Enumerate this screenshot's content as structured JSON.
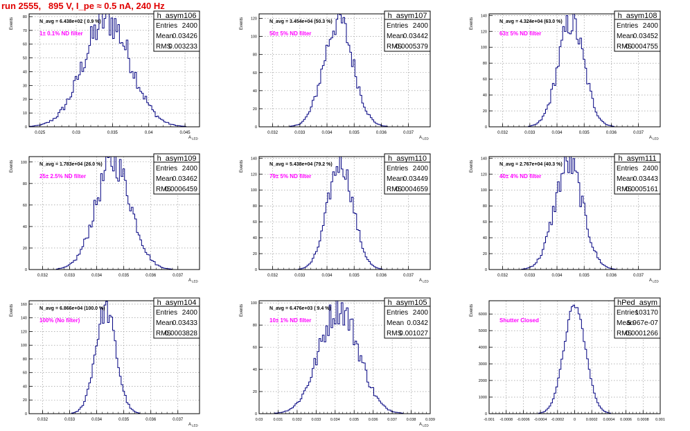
{
  "title": "run 2555,   895 V, I_pe ≈ 0.5 nA, 240 Hz",
  "chart_data": [
    {
      "type": "histogram",
      "name": "h_asym106",
      "legend_line1": "N_avg = 6.438e+02 ( 0.9 %)",
      "annotation": "1± 0.1% ND filter",
      "stats": {
        "Entries": "2400",
        "Mean": "0.03426",
        "RMS": "0.003233"
      },
      "xlim": [
        0.0235,
        0.047
      ],
      "xticks": [
        0.025,
        0.03,
        0.035,
        0.04,
        0.045
      ],
      "xtick_labels": [
        "0.025",
        "0.03",
        "0.035",
        "0.04",
        "0.045"
      ],
      "ylim": [
        0,
        82
      ],
      "yticks": [
        0,
        10,
        20,
        30,
        40,
        50,
        60,
        70,
        80
      ],
      "ylabel": "Events",
      "xlabel": "A_LED",
      "peak": 78,
      "mu": 0.03426,
      "sigma": 0.003233,
      "rough": 0.18
    },
    {
      "type": "histogram",
      "name": "h_asym107",
      "legend_line1": "N_avg = 3.454e+04 (50.3 %)",
      "annotation": "50± 5% ND filter",
      "stats": {
        "Entries": "2400",
        "Mean": "0.03442",
        "RMS": "0.0005379"
      },
      "xlim": [
        0.0315,
        0.0378
      ],
      "xticks": [
        0.032,
        0.033,
        0.034,
        0.035,
        0.036,
        0.037
      ],
      "xtick_labels": [
        "0.032",
        "0.033",
        "0.034",
        "0.035",
        "0.036",
        "0.037"
      ],
      "ylim": [
        0,
        125
      ],
      "yticks": [
        0,
        20,
        40,
        60,
        80,
        100,
        120
      ],
      "ylabel": "Events",
      "xlabel": "A_LED",
      "peak": 118,
      "mu": 0.03442,
      "sigma": 0.000538,
      "rough": 0.15
    },
    {
      "type": "histogram",
      "name": "h_asym108",
      "legend_line1": "N_avg = 4.324e+04 (63.0 %)",
      "annotation": "63± 5% ND filter",
      "stats": {
        "Entries": "2400",
        "Mean": "0.03452",
        "RMS": "0.0004755"
      },
      "xlim": [
        0.0315,
        0.0378
      ],
      "xticks": [
        0.032,
        0.033,
        0.034,
        0.035,
        0.036,
        0.037
      ],
      "xtick_labels": [
        "0.032",
        "0.033",
        "0.034",
        "0.035",
        "0.036",
        "0.037"
      ],
      "ylim": [
        0,
        142
      ],
      "yticks": [
        0,
        20,
        40,
        60,
        80,
        100,
        120,
        140
      ],
      "ylabel": "Events",
      "xlabel": "A_LED",
      "peak": 132,
      "mu": 0.03452,
      "sigma": 0.000476,
      "rough": 0.15
    },
    {
      "type": "histogram",
      "name": "h_asym109",
      "legend_line1": "N_avg = 1.783e+04 (26.0 %)",
      "annotation": "25± 2.5% ND filter",
      "stats": {
        "Entries": "2400",
        "Mean": "0.03462",
        "RMS": "0.0006459"
      },
      "xlim": [
        0.0315,
        0.0378
      ],
      "xticks": [
        0.032,
        0.033,
        0.034,
        0.035,
        0.036,
        0.037
      ],
      "xtick_labels": [
        "0.032",
        "0.033",
        "0.034",
        "0.035",
        "0.036",
        "0.037"
      ],
      "ylim": [
        0,
        105
      ],
      "yticks": [
        0,
        20,
        40,
        60,
        80,
        100
      ],
      "ylabel": "Events",
      "xlabel": "A_LED",
      "peak": 100,
      "mu": 0.03462,
      "sigma": 0.000646,
      "rough": 0.15
    },
    {
      "type": "histogram",
      "name": "h_asym110",
      "legend_line1": "N_avg = 5.438e+04 (79.2 %)",
      "annotation": "79± 5% ND filter",
      "stats": {
        "Entries": "2400",
        "Mean": "0.03449",
        "RMS": "0.0004659"
      },
      "xlim": [
        0.0315,
        0.0378
      ],
      "xticks": [
        0.032,
        0.033,
        0.034,
        0.035,
        0.036,
        0.037
      ],
      "xtick_labels": [
        "0.032",
        "0.033",
        "0.034",
        "0.035",
        "0.036",
        "0.037"
      ],
      "ylim": [
        0,
        142
      ],
      "yticks": [
        0,
        20,
        40,
        60,
        80,
        100,
        120,
        140
      ],
      "ylabel": "Events",
      "xlabel": "A_LED",
      "peak": 135,
      "mu": 0.03449,
      "sigma": 0.000466,
      "rough": 0.12
    },
    {
      "type": "histogram",
      "name": "h_asym111",
      "legend_line1": "N_avg = 2.767e+04 (40.3 %)",
      "annotation": "40± 4% ND filter",
      "stats": {
        "Entries": "2400",
        "Mean": "0.03443",
        "RMS": "0.0005161"
      },
      "xlim": [
        0.0315,
        0.0378
      ],
      "xticks": [
        0.032,
        0.033,
        0.034,
        0.035,
        0.036,
        0.037
      ],
      "xtick_labels": [
        "0.032",
        "0.033",
        "0.034",
        "0.035",
        "0.036",
        "0.037"
      ],
      "ylim": [
        0,
        142
      ],
      "yticks": [
        0,
        20,
        40,
        60,
        80,
        100,
        120,
        140
      ],
      "ylabel": "Events",
      "xlabel": "A_LED",
      "peak": 133,
      "mu": 0.03443,
      "sigma": 0.000516,
      "rough": 0.15
    },
    {
      "type": "histogram",
      "name": "h_asym104",
      "legend_line1": "N_avg = 6.866e+04 (100.0 %)",
      "annotation": "100% (No filter)",
      "stats": {
        "Entries": "2400",
        "Mean": "0.03433",
        "RMS": "0.0003828"
      },
      "xlim": [
        0.0315,
        0.0378
      ],
      "xticks": [
        0.032,
        0.033,
        0.034,
        0.035,
        0.036,
        0.037
      ],
      "xtick_labels": [
        "0.032",
        "0.033",
        "0.034",
        "0.035",
        "0.036",
        "0.037"
      ],
      "ylim": [
        0,
        165
      ],
      "yticks": [
        0,
        20,
        40,
        60,
        80,
        100,
        120,
        140,
        160
      ],
      "ylabel": "Events",
      "xlabel": "A_LED",
      "peak": 152,
      "mu": 0.03433,
      "sigma": 0.000383,
      "rough": 0.12
    },
    {
      "type": "histogram",
      "name": "h_asym105",
      "legend_line1": "N_avg = 6.476e+03 ( 9.4 %)",
      "annotation": "10± 1% ND filter",
      "stats": {
        "Entries": "2400",
        "Mean": "0.0342",
        "RMS": "0.001027"
      },
      "xlim": [
        0.03,
        0.039
      ],
      "xticks": [
        0.03,
        0.031,
        0.032,
        0.033,
        0.034,
        0.035,
        0.036,
        0.037,
        0.038,
        0.039
      ],
      "xtick_labels": [
        "0.03",
        "0.031",
        "0.032",
        "0.033",
        "0.034",
        "0.035",
        "0.036",
        "0.037",
        "0.038",
        "0.039"
      ],
      "ylim": [
        0,
        102
      ],
      "yticks": [
        0,
        20,
        40,
        60,
        80,
        100
      ],
      "ylabel": "Events",
      "xlabel": "A_LED",
      "peak": 96,
      "mu": 0.0342,
      "sigma": 0.001027,
      "rough": 0.16
    },
    {
      "type": "histogram",
      "name": "hPed_asym",
      "legend_line1": "",
      "annotation": "Shutter Closed",
      "stats": {
        "Entries": "103170",
        "Mean": "5.967e-07",
        "RMS": "0.0001266"
      },
      "xlim": [
        -0.001,
        0.001
      ],
      "xticks": [
        -0.001,
        -0.0008,
        -0.0006,
        -0.0004,
        -0.0002,
        0,
        0.0002,
        0.0004,
        0.0006,
        0.0008,
        0.001
      ],
      "xtick_labels": [
        "-0.001",
        "-0.0008",
        "-0.0006",
        "-0.0004",
        "-0.0002",
        "0",
        "0.0002",
        "0.0004",
        "0.0006",
        "0.0008",
        "0.001"
      ],
      "ylim": [
        0,
        6800
      ],
      "yticks": [
        0,
        1000,
        2000,
        3000,
        4000,
        5000,
        6000
      ],
      "ylabel": "Events",
      "xlabel": "",
      "peak": 6500,
      "mu": 6e-07,
      "sigma": 0.0001266,
      "rough": 0.03
    }
  ],
  "colors": {
    "title": "#e00000",
    "histogram": "#000080",
    "annotation": "#ff00ff",
    "axis": "#000000",
    "grid": "#888888"
  }
}
